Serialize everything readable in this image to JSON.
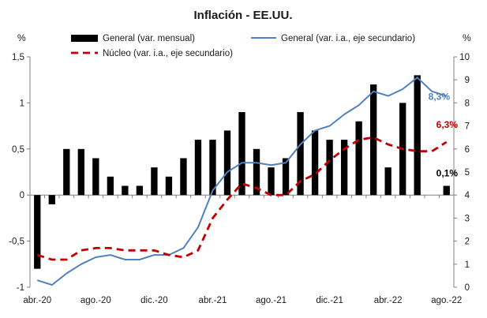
{
  "chart_data": {
    "type": "bar+line",
    "title": "Inflación - EE.UU.",
    "y_left_unit": "%",
    "y_right_unit": "%",
    "y_left_range": [
      -1,
      1.5
    ],
    "y_left_ticks": [
      "-1",
      "-0,5",
      "0",
      "0,5",
      "1",
      "1,5"
    ],
    "y_left_tick_values": [
      -1,
      -0.5,
      0,
      0.5,
      1,
      1.5
    ],
    "y_right_range": [
      0,
      10
    ],
    "y_right_ticks": [
      "0",
      "1",
      "2",
      "3",
      "4",
      "5",
      "6",
      "7",
      "8",
      "9",
      "10"
    ],
    "y_right_tick_values": [
      0,
      1,
      2,
      3,
      4,
      5,
      6,
      7,
      8,
      9,
      10
    ],
    "x_labels": [
      "abr.-20",
      "ago.-20",
      "dic.-20",
      "abr.-21",
      "ago.-21",
      "dic.-21",
      "abr.-22",
      "ago.-22"
    ],
    "x_label_indices": [
      0,
      4,
      8,
      12,
      16,
      20,
      24,
      28
    ],
    "months": [
      "abr.-20",
      "may.-20",
      "jun.-20",
      "jul.-20",
      "ago.-20",
      "sep.-20",
      "oct.-20",
      "nov.-20",
      "dic.-20",
      "ene.-21",
      "feb.-21",
      "mar.-21",
      "abr.-21",
      "may.-21",
      "jun.-21",
      "jul.-21",
      "ago.-21",
      "sep.-21",
      "oct.-21",
      "nov.-21",
      "dic.-21",
      "ene.-22",
      "feb.-22",
      "mar.-22",
      "abr.-22",
      "may.-22",
      "jun.-22",
      "jul.-22",
      "ago.-22"
    ],
    "series": [
      {
        "name": "General (var. mensual)",
        "kind": "bar",
        "axis": "left",
        "color": "#000000",
        "values": [
          -0.8,
          -0.1,
          0.5,
          0.5,
          0.4,
          0.2,
          0.1,
          0.1,
          0.3,
          0.2,
          0.4,
          0.6,
          0.6,
          0.7,
          0.9,
          0.5,
          0.3,
          0.4,
          0.9,
          0.7,
          0.6,
          0.6,
          0.8,
          1.2,
          0.3,
          1.0,
          1.3,
          0.0,
          0.1
        ]
      },
      {
        "name": "General (var. i.a., eje secundario)",
        "kind": "line",
        "axis": "right",
        "color": "#4f81bd",
        "values": [
          0.3,
          0.1,
          0.6,
          1.0,
          1.3,
          1.4,
          1.2,
          1.2,
          1.4,
          1.4,
          1.7,
          2.6,
          4.2,
          5.0,
          5.4,
          5.4,
          5.3,
          5.4,
          6.2,
          6.8,
          7.0,
          7.5,
          7.9,
          8.5,
          8.3,
          8.6,
          9.1,
          8.5,
          8.3
        ]
      },
      {
        "name": "Núcleo (var. i.a., eje secundario)",
        "kind": "line",
        "axis": "right",
        "color": "#c00000",
        "dashed": true,
        "values": [
          1.4,
          1.2,
          1.2,
          1.6,
          1.7,
          1.7,
          1.6,
          1.6,
          1.6,
          1.4,
          1.3,
          1.6,
          3.0,
          3.8,
          4.5,
          4.3,
          4.0,
          4.0,
          4.6,
          4.9,
          5.5,
          6.0,
          6.4,
          6.5,
          6.2,
          6.0,
          5.9,
          5.9,
          6.3
        ]
      }
    ],
    "annotations": [
      {
        "text": "8,3%",
        "series": 1,
        "color": "#4f81bd"
      },
      {
        "text": "6,3%",
        "series": 2,
        "color": "#c00000"
      },
      {
        "text": "0,1%",
        "series": 0,
        "color": "#000000"
      }
    ],
    "legend_position": "top",
    "grid": false
  }
}
